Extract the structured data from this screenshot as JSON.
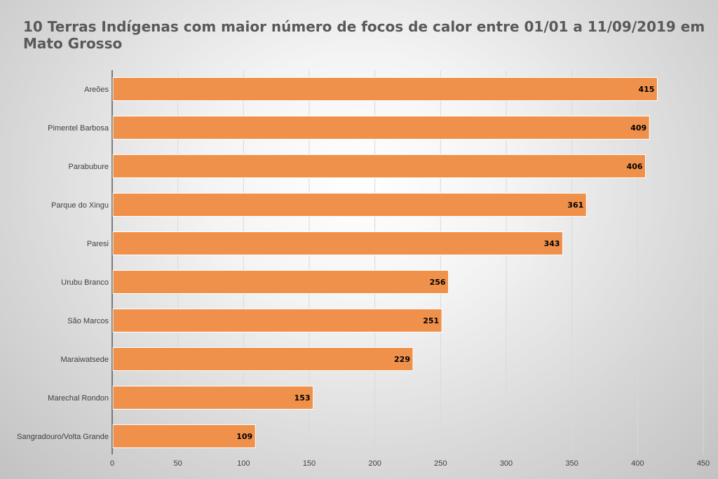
{
  "chart_data": {
    "type": "bar",
    "orientation": "horizontal",
    "title": "10 Terras Indígenas com maior número de focos de calor entre 01/01 a 11/09/2019 em Mato Grosso",
    "categories": [
      "Areões",
      "Pimentel Barbosa",
      "Parabubure",
      "Parque do Xingu",
      "Paresi",
      "Urubu Branco",
      "São Marcos",
      "Maraiwatsede",
      "Marechal Rondon",
      "Sangradouro/Volta Grande"
    ],
    "values": [
      415,
      409,
      406,
      361,
      343,
      256,
      251,
      229,
      153,
      109
    ],
    "xlim": [
      0,
      450
    ],
    "xticks": [
      0,
      50,
      100,
      150,
      200,
      250,
      300,
      350,
      400,
      450
    ],
    "xlabel": "",
    "ylabel": "",
    "grid": true,
    "legend": "none",
    "bar_color": "#F0914B"
  }
}
